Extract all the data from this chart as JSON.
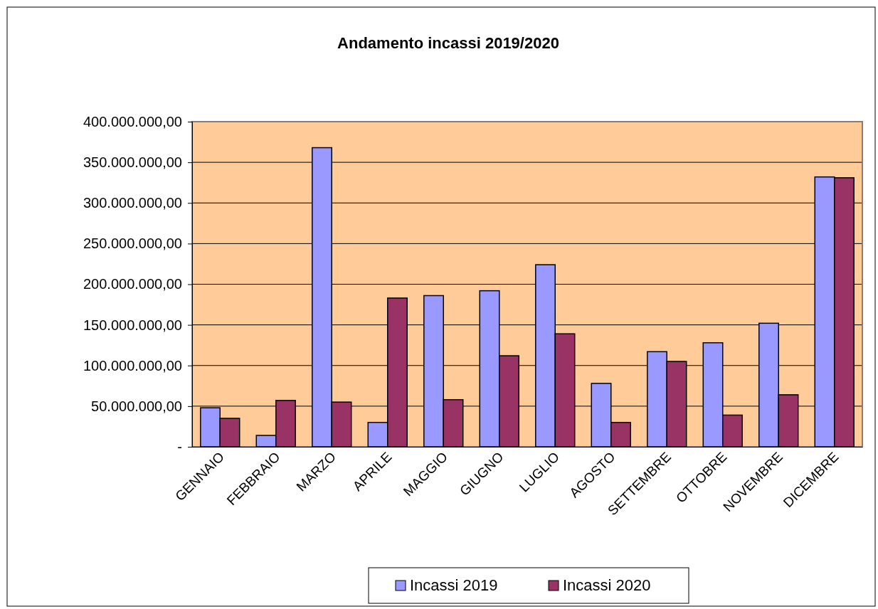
{
  "chart_data": {
    "type": "bar",
    "title": "Andamento  incassi 2019/2020",
    "categories": [
      "GENNAIO",
      "FEBBRAIO",
      "MARZO",
      "APRILE",
      "MAGGIO",
      "GIUGNO",
      "LUGLIO",
      "AGOSTO",
      "SETTEMBRE",
      "OTTOBRE",
      "NOVEMBRE",
      "DICEMBRE"
    ],
    "series": [
      {
        "name": "Incassi 2019",
        "color": "#9999ff",
        "values": [
          48000000,
          14000000,
          368000000,
          30000000,
          186000000,
          192000000,
          224000000,
          78000000,
          117000000,
          128000000,
          152000000,
          332000000
        ]
      },
      {
        "name": "Incassi 2020",
        "color": "#993366",
        "values": [
          35000000,
          57000000,
          55000000,
          183000000,
          58000000,
          112000000,
          139000000,
          30000000,
          105000000,
          39000000,
          64000000,
          331000000
        ]
      }
    ],
    "ylim": [
      0,
      400000000
    ],
    "yticks": [
      {
        "value": 0,
        "label": "-"
      },
      {
        "value": 50000000,
        "label": "50.000.000,00"
      },
      {
        "value": 100000000,
        "label": "100.000.000,00"
      },
      {
        "value": 150000000,
        "label": "150.000.000,00"
      },
      {
        "value": 200000000,
        "label": "200.000.000,00"
      },
      {
        "value": 250000000,
        "label": "250.000.000,00"
      },
      {
        "value": 300000000,
        "label": "300.000.000,00"
      },
      {
        "value": 350000000,
        "label": "350.000.000,00"
      },
      {
        "value": 400000000,
        "label": "400.000.000,00"
      }
    ],
    "grid": "y",
    "legend": "bottom"
  }
}
